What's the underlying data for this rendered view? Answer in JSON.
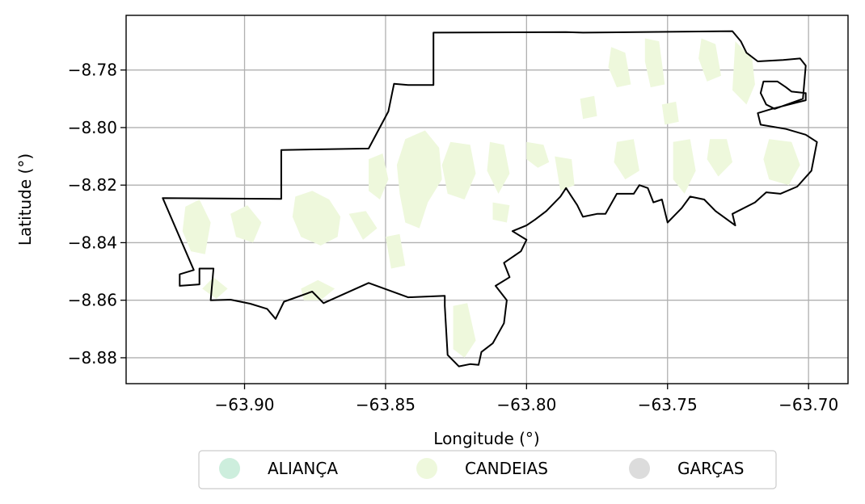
{
  "chart_data": {
    "type": "map",
    "xlabel": "Longitude (°)",
    "ylabel": "Latitude (°)",
    "xlim": [
      -63.942,
      -63.686
    ],
    "ylim": [
      -8.889,
      -8.761
    ],
    "xticks": [
      -63.9,
      -63.85,
      -63.8,
      -63.75,
      -63.7
    ],
    "xtick_labels": [
      "−63.90",
      "−63.85",
      "−63.80",
      "−63.75",
      "−63.70"
    ],
    "yticks": [
      -8.78,
      -8.8,
      -8.82,
      -8.84,
      -8.86,
      -8.88
    ],
    "ytick_labels": [
      "−8.78",
      "−8.80",
      "−8.82",
      "−8.84",
      "−8.86",
      "−8.88"
    ],
    "grid": true,
    "legend_position": "bottom-center",
    "legend": [
      {
        "label": "ALIANÇA",
        "color": "#cdeedd"
      },
      {
        "label": "CANDEIAS",
        "color": "#eef8dc"
      },
      {
        "label": "GARÇAS",
        "color": "#dcdcdc"
      }
    ],
    "boundary": [
      [
        -63.929,
        -8.8245
      ],
      [
        -63.887,
        -8.8248
      ],
      [
        -63.887,
        -8.8078
      ],
      [
        -63.856,
        -8.8073
      ],
      [
        -63.849,
        -8.7944
      ],
      [
        -63.847,
        -8.7848
      ],
      [
        -63.842,
        -8.7852
      ],
      [
        -63.833,
        -8.7852
      ],
      [
        -63.833,
        -8.767
      ],
      [
        -63.786,
        -8.7668
      ],
      [
        -63.78,
        -8.767
      ],
      [
        -63.727,
        -8.7665
      ],
      [
        -63.724,
        -8.77
      ],
      [
        -63.722,
        -8.774
      ],
      [
        -63.718,
        -8.777
      ],
      [
        -63.709,
        -8.7765
      ],
      [
        -63.703,
        -8.776
      ],
      [
        -63.701,
        -8.7785
      ],
      [
        -63.702,
        -8.79
      ],
      [
        -63.712,
        -8.7935
      ],
      [
        -63.715,
        -8.792
      ],
      [
        -63.717,
        -8.788
      ],
      [
        -63.716,
        -8.784
      ],
      [
        -63.711,
        -8.784
      ],
      [
        -63.708,
        -8.786
      ],
      [
        -63.706,
        -8.7875
      ],
      [
        -63.701,
        -8.788
      ],
      [
        -63.701,
        -8.7905
      ],
      [
        -63.713,
        -8.7935
      ],
      [
        -63.718,
        -8.795
      ],
      [
        -63.717,
        -8.799
      ],
      [
        -63.708,
        -8.8005
      ],
      [
        -63.701,
        -8.8025
      ],
      [
        -63.697,
        -8.805
      ],
      [
        -63.699,
        -8.815
      ],
      [
        -63.704,
        -8.8205
      ],
      [
        -63.71,
        -8.823
      ],
      [
        -63.715,
        -8.8225
      ],
      [
        -63.719,
        -8.826
      ],
      [
        -63.727,
        -8.83
      ],
      [
        -63.726,
        -8.834
      ],
      [
        -63.733,
        -8.829
      ],
      [
        -63.737,
        -8.825
      ],
      [
        -63.742,
        -8.824
      ],
      [
        -63.745,
        -8.828
      ],
      [
        -63.748,
        -8.831
      ],
      [
        -63.75,
        -8.833
      ],
      [
        -63.752,
        -8.825
      ],
      [
        -63.755,
        -8.826
      ],
      [
        -63.757,
        -8.821
      ],
      [
        -63.76,
        -8.82
      ],
      [
        -63.762,
        -8.823
      ],
      [
        -63.768,
        -8.823
      ],
      [
        -63.772,
        -8.83
      ],
      [
        -63.775,
        -8.83
      ],
      [
        -63.78,
        -8.831
      ],
      [
        -63.782,
        -8.827
      ],
      [
        -63.784,
        -8.824
      ],
      [
        -63.786,
        -8.821
      ],
      [
        -63.788,
        -8.824
      ],
      [
        -63.793,
        -8.829
      ],
      [
        -63.797,
        -8.832
      ],
      [
        -63.8,
        -8.834
      ],
      [
        -63.805,
        -8.836
      ],
      [
        -63.8,
        -8.839
      ],
      [
        -63.802,
        -8.843
      ],
      [
        -63.808,
        -8.847
      ],
      [
        -63.806,
        -8.852
      ],
      [
        -63.811,
        -8.855
      ],
      [
        -63.807,
        -8.86
      ],
      [
        -63.808,
        -8.868
      ],
      [
        -63.812,
        -8.875
      ],
      [
        -63.816,
        -8.878
      ],
      [
        -63.817,
        -8.8825
      ],
      [
        -63.82,
        -8.8822
      ],
      [
        -63.824,
        -8.883
      ],
      [
        -63.828,
        -8.879
      ],
      [
        -63.829,
        -8.862
      ],
      [
        -63.829,
        -8.8585
      ],
      [
        -63.842,
        -8.859
      ],
      [
        -63.856,
        -8.854
      ],
      [
        -63.872,
        -8.861
      ],
      [
        -63.876,
        -8.857
      ],
      [
        -63.886,
        -8.8605
      ],
      [
        -63.889,
        -8.8665
      ],
      [
        -63.892,
        -8.863
      ],
      [
        -63.898,
        -8.8612
      ],
      [
        -63.905,
        -8.8598
      ],
      [
        -63.912,
        -8.86
      ],
      [
        -63.911,
        -8.849
      ],
      [
        -63.916,
        -8.849
      ],
      [
        -63.916,
        -8.8545
      ],
      [
        -63.923,
        -8.855
      ],
      [
        -63.923,
        -8.851
      ],
      [
        -63.918,
        -8.8495
      ],
      [
        -63.929,
        -8.8245
      ]
    ],
    "candeias_areas": [
      [
        [
          -63.921,
          -8.8275
        ],
        [
          -63.916,
          -8.825
        ],
        [
          -63.912,
          -8.833
        ],
        [
          -63.914,
          -8.844
        ],
        [
          -63.919,
          -8.843
        ],
        [
          -63.922,
          -8.836
        ]
      ],
      [
        [
          -63.915,
          -8.856
        ],
        [
          -63.911,
          -8.852
        ],
        [
          -63.906,
          -8.856
        ],
        [
          -63.91,
          -8.8595
        ]
      ],
      [
        [
          -63.905,
          -8.83
        ],
        [
          -63.899,
          -8.827
        ],
        [
          -63.894,
          -8.833
        ],
        [
          -63.897,
          -8.84
        ],
        [
          -63.903,
          -8.838
        ]
      ],
      [
        [
          -63.882,
          -8.824
        ],
        [
          -63.876,
          -8.822
        ],
        [
          -63.87,
          -8.825
        ],
        [
          -63.866,
          -8.831
        ],
        [
          -63.867,
          -8.838
        ],
        [
          -63.873,
          -8.841
        ],
        [
          -63.88,
          -8.838
        ],
        [
          -63.883,
          -8.831
        ]
      ],
      [
        [
          -63.88,
          -8.856
        ],
        [
          -63.874,
          -8.853
        ],
        [
          -63.868,
          -8.856
        ],
        [
          -63.873,
          -8.86
        ],
        [
          -63.879,
          -8.86
        ]
      ],
      [
        [
          -63.863,
          -8.83
        ],
        [
          -63.857,
          -8.829
        ],
        [
          -63.853,
          -8.835
        ],
        [
          -63.858,
          -8.839
        ]
      ],
      [
        [
          -63.856,
          -8.811
        ],
        [
          -63.851,
          -8.809
        ],
        [
          -63.849,
          -8.818
        ],
        [
          -63.852,
          -8.825
        ],
        [
          -63.856,
          -8.822
        ]
      ],
      [
        [
          -63.85,
          -8.838
        ],
        [
          -63.845,
          -8.837
        ],
        [
          -63.843,
          -8.848
        ],
        [
          -63.848,
          -8.849
        ]
      ],
      [
        [
          -63.843,
          -8.804
        ],
        [
          -63.836,
          -8.801
        ],
        [
          -63.831,
          -8.807
        ],
        [
          -63.83,
          -8.818
        ],
        [
          -63.835,
          -8.826
        ],
        [
          -63.838,
          -8.835
        ],
        [
          -63.843,
          -8.833
        ],
        [
          -63.845,
          -8.823
        ],
        [
          -63.846,
          -8.813
        ]
      ],
      [
        [
          -63.827,
          -8.805
        ],
        [
          -63.82,
          -8.806
        ],
        [
          -63.818,
          -8.816
        ],
        [
          -63.822,
          -8.825
        ],
        [
          -63.828,
          -8.823
        ],
        [
          -63.83,
          -8.813
        ]
      ],
      [
        [
          -63.826,
          -8.862
        ],
        [
          -63.821,
          -8.861
        ],
        [
          -63.818,
          -8.874
        ],
        [
          -63.822,
          -8.88
        ],
        [
          -63.826,
          -8.877
        ]
      ],
      [
        [
          -63.813,
          -8.805
        ],
        [
          -63.808,
          -8.806
        ],
        [
          -63.806,
          -8.816
        ],
        [
          -63.81,
          -8.823
        ],
        [
          -63.814,
          -8.815
        ]
      ],
      [
        [
          -63.812,
          -8.826
        ],
        [
          -63.806,
          -8.827
        ],
        [
          -63.807,
          -8.833
        ],
        [
          -63.812,
          -8.832
        ]
      ],
      [
        [
          -63.8,
          -8.805
        ],
        [
          -63.794,
          -8.806
        ],
        [
          -63.792,
          -8.812
        ],
        [
          -63.796,
          -8.814
        ],
        [
          -63.8,
          -8.811
        ]
      ],
      [
        [
          -63.79,
          -8.81
        ],
        [
          -63.784,
          -8.811
        ],
        [
          -63.783,
          -8.82
        ],
        [
          -63.788,
          -8.822
        ]
      ],
      [
        [
          -63.781,
          -8.79
        ],
        [
          -63.776,
          -8.789
        ],
        [
          -63.775,
          -8.796
        ],
        [
          -63.78,
          -8.797
        ]
      ],
      [
        [
          -63.77,
          -8.772
        ],
        [
          -63.765,
          -8.774
        ],
        [
          -63.763,
          -8.785
        ],
        [
          -63.768,
          -8.786
        ],
        [
          -63.771,
          -8.779
        ]
      ],
      [
        [
          -63.768,
          -8.805
        ],
        [
          -63.762,
          -8.804
        ],
        [
          -63.76,
          -8.815
        ],
        [
          -63.765,
          -8.818
        ],
        [
          -63.769,
          -8.812
        ]
      ],
      [
        [
          -63.758,
          -8.769
        ],
        [
          -63.753,
          -8.77
        ],
        [
          -63.751,
          -8.785
        ],
        [
          -63.756,
          -8.786
        ],
        [
          -63.758,
          -8.777
        ]
      ],
      [
        [
          -63.752,
          -8.792
        ],
        [
          -63.747,
          -8.791
        ],
        [
          -63.746,
          -8.798
        ],
        [
          -63.751,
          -8.799
        ]
      ],
      [
        [
          -63.748,
          -8.805
        ],
        [
          -63.742,
          -8.804
        ],
        [
          -63.74,
          -8.815
        ],
        [
          -63.744,
          -8.823
        ],
        [
          -63.748,
          -8.818
        ]
      ],
      [
        [
          -63.738,
          -8.769
        ],
        [
          -63.733,
          -8.771
        ],
        [
          -63.731,
          -8.782
        ],
        [
          -63.736,
          -8.784
        ],
        [
          -63.739,
          -8.776
        ]
      ],
      [
        [
          -63.735,
          -8.804
        ],
        [
          -63.729,
          -8.804
        ],
        [
          -63.727,
          -8.812
        ],
        [
          -63.732,
          -8.817
        ],
        [
          -63.736,
          -8.811
        ]
      ],
      [
        [
          -63.726,
          -8.77
        ],
        [
          -63.72,
          -8.776
        ],
        [
          -63.719,
          -8.785
        ],
        [
          -63.722,
          -8.792
        ],
        [
          -63.727,
          -8.787
        ]
      ],
      [
        [
          -63.714,
          -8.804
        ],
        [
          -63.706,
          -8.805
        ],
        [
          -63.703,
          -8.813
        ],
        [
          -63.707,
          -8.82
        ],
        [
          -63.714,
          -8.818
        ],
        [
          -63.716,
          -8.811
        ]
      ]
    ]
  }
}
